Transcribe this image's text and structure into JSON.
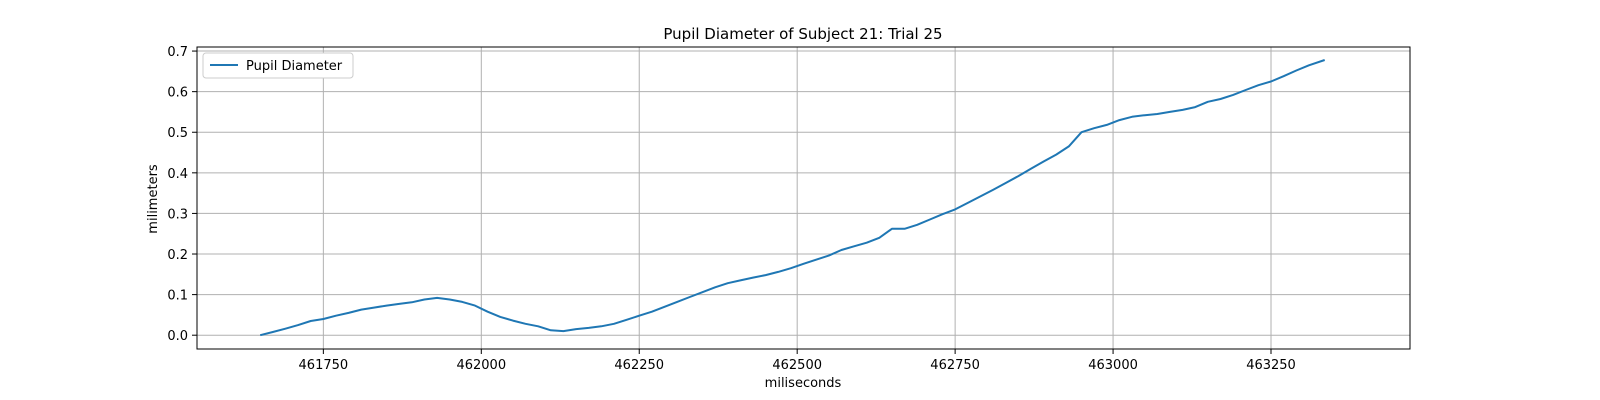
{
  "chart_data": {
    "type": "line",
    "title": "Pupil Diameter of Subject 21: Trial 25",
    "xlabel": "miliseconds",
    "ylabel": "milimeters",
    "xlim": [
      461550,
      463470
    ],
    "ylim": [
      -0.034,
      0.71
    ],
    "xticks": [
      461750,
      462000,
      462250,
      462500,
      462750,
      463000,
      463250
    ],
    "yticks": [
      0.0,
      0.1,
      0.2,
      0.3,
      0.4,
      0.5,
      0.6,
      0.7
    ],
    "grid": true,
    "legend": {
      "placement": "top-left",
      "entries": [
        "Pupil Diameter"
      ]
    },
    "series": [
      {
        "name": "Pupil Diameter",
        "color": "#1f77b4",
        "x": [
          461650,
          461670,
          461690,
          461710,
          461730,
          461750,
          461770,
          461790,
          461810,
          461830,
          461850,
          461870,
          461890,
          461910,
          461930,
          461950,
          461970,
          461990,
          462010,
          462030,
          462050,
          462070,
          462090,
          462110,
          462130,
          462150,
          462170,
          462190,
          462210,
          462230,
          462250,
          462270,
          462290,
          462310,
          462330,
          462350,
          462370,
          462390,
          462410,
          462430,
          462450,
          462470,
          462490,
          462510,
          462530,
          462550,
          462570,
          462590,
          462610,
          462630,
          462650,
          462670,
          462690,
          462710,
          462730,
          462750,
          462770,
          462790,
          462810,
          462830,
          462850,
          462870,
          462890,
          462910,
          462930,
          462950,
          462970,
          462990,
          463010,
          463030,
          463050,
          463070,
          463090,
          463110,
          463130,
          463150,
          463170,
          463190,
          463210,
          463230,
          463250,
          463270,
          463290,
          463310,
          463335
        ],
        "values": [
          0.0,
          0.008,
          0.016,
          0.025,
          0.035,
          0.04,
          0.048,
          0.055,
          0.063,
          0.068,
          0.073,
          0.077,
          0.081,
          0.088,
          0.092,
          0.088,
          0.082,
          0.073,
          0.058,
          0.045,
          0.036,
          0.028,
          0.022,
          0.012,
          0.01,
          0.015,
          0.018,
          0.022,
          0.028,
          0.038,
          0.048,
          0.058,
          0.07,
          0.082,
          0.094,
          0.106,
          0.118,
          0.128,
          0.135,
          0.142,
          0.148,
          0.156,
          0.165,
          0.176,
          0.186,
          0.196,
          0.21,
          0.219,
          0.228,
          0.24,
          0.262,
          0.262,
          0.272,
          0.285,
          0.298,
          0.31,
          0.326,
          0.342,
          0.358,
          0.375,
          0.392,
          0.41,
          0.428,
          0.445,
          0.465,
          0.5,
          0.51,
          0.518,
          0.53,
          0.538,
          0.542,
          0.545,
          0.55,
          0.555,
          0.562,
          0.575,
          0.582,
          0.592,
          0.604,
          0.616,
          0.625,
          0.638,
          0.652,
          0.665,
          0.678
        ]
      }
    ]
  }
}
